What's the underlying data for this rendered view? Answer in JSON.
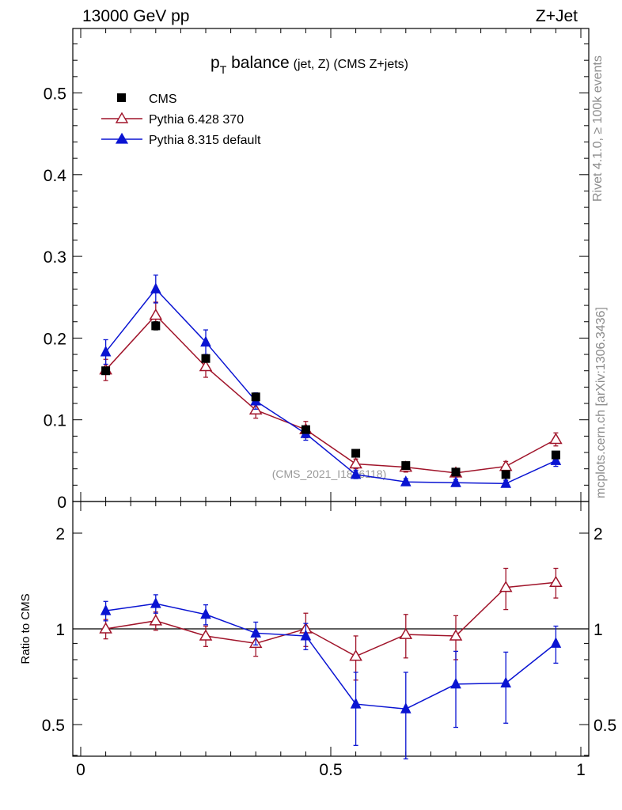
{
  "header": {
    "left": "13000 GeV pp",
    "right": "Z+Jet"
  },
  "side": {
    "rivet": "Rivet 4.1.0, ≥ 100k events",
    "mcplots": "mcplots.cern.ch [arXiv:1306.3436]"
  },
  "chart_data": {
    "type": "line",
    "title_main": "p",
    "title_sub": "T",
    "title_rest": " balance",
    "title_small": "(jet, Z) (CMS Z+jets)",
    "analysis_label": "(CMS_2021_I1866118)",
    "x": [
      0.05,
      0.15,
      0.25,
      0.35,
      0.45,
      0.55,
      0.65,
      0.75,
      0.85,
      0.95
    ],
    "xlim": [
      0,
      1
    ],
    "xticks": [
      "0",
      "0.5",
      "1"
    ],
    "xtick_values": [
      0,
      0.5,
      1
    ],
    "ylim": [
      0,
      0.58
    ],
    "yticks": [
      "0",
      "0.1",
      "0.2",
      "0.3",
      "0.4",
      "0.5"
    ],
    "ytick_values": [
      0,
      0.1,
      0.2,
      0.3,
      0.4,
      0.5
    ],
    "series": [
      {
        "name": "CMS",
        "color": "#000000",
        "marker": "square",
        "values": [
          0.16,
          0.215,
          0.175,
          0.128,
          0.088,
          0.059,
          0.044,
          0.036,
          0.033,
          0.057
        ],
        "errors": [
          0.004,
          0.005,
          0.004,
          0.004,
          0.003,
          0.003,
          0.002,
          0.002,
          0.002,
          0.003
        ]
      },
      {
        "name": "Pythia 6.428 370",
        "color": "#a0142a",
        "marker": "triangle-open",
        "values": [
          0.161,
          0.228,
          0.165,
          0.112,
          0.088,
          0.046,
          0.042,
          0.035,
          0.043,
          0.076
        ],
        "errors": [
          0.013,
          0.016,
          0.013,
          0.01,
          0.01,
          0.006,
          0.006,
          0.005,
          0.006,
          0.008
        ]
      },
      {
        "name": "Pythia 8.315 default",
        "color": "#0a14d2",
        "marker": "triangle",
        "values": [
          0.183,
          0.26,
          0.195,
          0.123,
          0.083,
          0.033,
          0.024,
          0.023,
          0.022,
          0.05
        ],
        "errors": [
          0.015,
          0.017,
          0.015,
          0.01,
          0.008,
          0.005,
          0.004,
          0.004,
          0.004,
          0.007
        ]
      }
    ],
    "ratio": {
      "ylabel": "Ratio to CMS",
      "ylim": [
        0.35,
        2.25
      ],
      "yticks": [
        "0.5",
        "1",
        "2"
      ],
      "ytick_values": [
        0.5,
        1,
        2
      ],
      "series": [
        {
          "name": "Pythia 6.428 370",
          "color": "#a0142a",
          "marker": "triangle-open",
          "values": [
            1.0,
            1.06,
            0.95,
            0.9,
            1.0,
            0.82,
            0.96,
            0.95,
            1.35,
            1.4
          ],
          "errors": [
            0.07,
            0.07,
            0.07,
            0.08,
            0.12,
            0.13,
            0.15,
            0.15,
            0.2,
            0.15
          ]
        },
        {
          "name": "Pythia 8.315 default",
          "color": "#0a14d2",
          "marker": "triangle",
          "values": [
            1.14,
            1.2,
            1.11,
            0.97,
            0.95,
            0.58,
            0.56,
            0.67,
            0.675,
            0.9
          ],
          "errors": [
            0.08,
            0.08,
            0.08,
            0.08,
            0.09,
            0.15,
            0.17,
            0.18,
            0.17,
            0.12
          ]
        }
      ]
    }
  }
}
